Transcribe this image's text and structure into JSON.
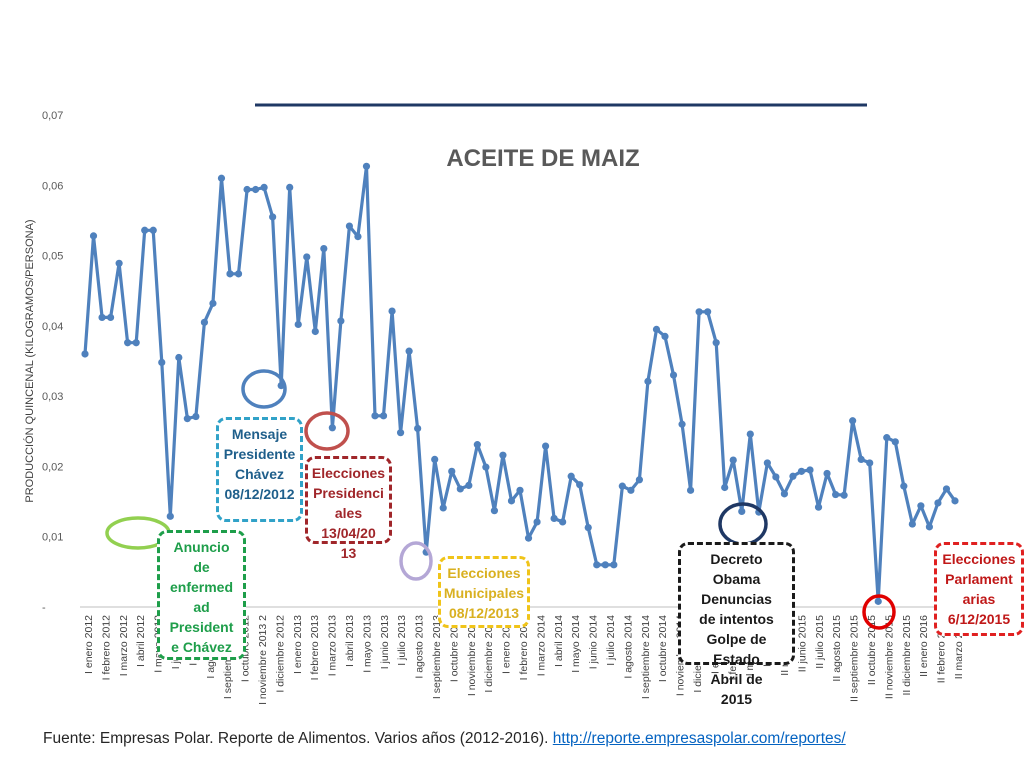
{
  "chart_data": {
    "type": "line",
    "title": "ACEITE DE MAIZ",
    "xlabel": "",
    "ylabel": "PRODUCCIÓN QUINCENAL (KILOGRAMOS/PERSONA)",
    "ylim": [
      0,
      0.07
    ],
    "y_ticks": [
      "-",
      "0,01",
      "0,02",
      "0,03",
      "0,04",
      "0,05",
      "0,06",
      "0,07"
    ],
    "grid": false,
    "legend": "none",
    "line_color": "#4f81bd",
    "x_tick_labels": [
      "I enero 2012",
      "I febrero 2012",
      "I marzo 2012",
      "I abril 2012",
      "I mayo 2012",
      "I junio 2012",
      "I julio 2012",
      "I agosto 2012",
      "I septiembre 2012",
      "I octubre 2012",
      "I noviembre 2013 2",
      "I diciembre 2012",
      "I enero 2013",
      "I febrero 2013",
      "I marzo 2013",
      "I abril 2013",
      "I mayo 2013",
      "I junio 2013",
      "I julio 2013",
      "I agosto 2013",
      "I septiembre 2013",
      "I octubre 2013",
      "I noviembre 2013",
      "I diciembre 2013",
      "I enero 2014",
      "I febrero 2014",
      "I marzo 2014",
      "I abril 2014",
      "I mayo 2014",
      "I junio 2014",
      "I julio 2014",
      "I agosto 2014",
      "I septiembre 2014",
      "I octubre 2014",
      "I noviembre 2014",
      "I diciembre 2014",
      "I enero 2015",
      "I febrero 2015",
      "I marzo 2015",
      "I abril 2015",
      "II mayo 2015",
      "II junio 2015",
      "II julio 2015",
      "II agosto 2015",
      "II septiembre 2015",
      "II octubre 2015",
      "II noviembre 2015",
      "II diciembre 2015",
      "II enero 2016",
      "II febrero 2016",
      "II marzo 2016"
    ],
    "values": [
      0.036,
      0.0528,
      0.0412,
      0.0412,
      0.0489,
      0.0376,
      0.0376,
      0.0536,
      0.0536,
      0.0348,
      0.0129,
      0.0355,
      0.0268,
      0.0271,
      0.0405,
      0.0432,
      0.061,
      0.0474,
      0.0474,
      0.0594,
      0.0594,
      0.0597,
      0.0555,
      0.0315,
      0.0597,
      0.0402,
      0.0498,
      0.0392,
      0.051,
      0.0255,
      0.0407,
      0.0542,
      0.0527,
      0.0627,
      0.0272,
      0.0272,
      0.0421,
      0.0248,
      0.0364,
      0.0254,
      0.0078,
      0.021,
      0.0141,
      0.0193,
      0.0168,
      0.0173,
      0.0231,
      0.0199,
      0.0137,
      0.0216,
      0.0151,
      0.0166,
      0.0098,
      0.0121,
      0.0229,
      0.0126,
      0.0121,
      0.0186,
      0.0174,
      0.0113,
      0.006,
      0.006,
      0.006,
      0.0172,
      0.0166,
      0.0181,
      0.0321,
      0.0395,
      0.0385,
      0.033,
      0.026,
      0.0166,
      0.042,
      0.042,
      0.0376,
      0.017,
      0.0209,
      0.0136,
      0.0246,
      0.0135,
      0.0205,
      0.0185,
      0.0161,
      0.0186,
      0.0193,
      0.0195,
      0.0142,
      0.019,
      0.016,
      0.0159,
      0.0265,
      0.021,
      0.0205,
      0.0008,
      0.0241,
      0.0235,
      0.0172,
      0.0118,
      0.0144,
      0.0114,
      0.0148,
      0.0168,
      0.0151
    ]
  },
  "annotations": [
    {
      "text": [
        "Mensaje",
        "Presidente",
        "Chávez",
        "08/12/2012"
      ],
      "border_color": "#31a2c8",
      "text_color": "#1f5f8b"
    },
    {
      "text": [
        "Elecciones",
        "Presidenci",
        "ales",
        "13/04/20",
        "13"
      ],
      "border_color": "#a0262a",
      "text_color": "#a0262a"
    },
    {
      "text": [
        "Anuncio",
        "de",
        "enfermed",
        "ad",
        "President",
        "e Chávez"
      ],
      "border_color": "#1e9e4a",
      "text_color": "#1e9e4a"
    },
    {
      "text": [
        "Elecciones",
        "Municipales",
        "08/12/2013"
      ],
      "border_color": "#f0c419",
      "text_color": "#d9b020"
    },
    {
      "text": [
        "Decreto",
        "Obama",
        "Denuncias",
        "de intentos",
        "Golpe de",
        "Estado",
        "Abril de",
        "2015"
      ],
      "border_color": "#1a1a1a",
      "text_color": "#1a1a1a"
    },
    {
      "text": [
        "Elecciones",
        "Parlament",
        "arias",
        "6/12/2015"
      ],
      "border_color": "#e02020",
      "text_color": "#c01818"
    }
  ],
  "markers": [
    {
      "name": "blue-circle-marker",
      "color": "#4f81bd"
    },
    {
      "name": "red-circle-marker",
      "color": "#c0504d"
    },
    {
      "name": "green-ellipse-marker",
      "color": "#92d050"
    },
    {
      "name": "purple-ellipse-marker",
      "color": "#b4a7d6"
    },
    {
      "name": "navy-circle-marker",
      "color": "#1f3864"
    },
    {
      "name": "bright-red-circle-marker",
      "color": "#e00000"
    }
  ],
  "source": {
    "text": "Fuente: Empresas Polar. Reporte de Alimentos. Varios años (2012-2016). ",
    "link": "http://reporte.empresaspolar.com/reportes/"
  }
}
